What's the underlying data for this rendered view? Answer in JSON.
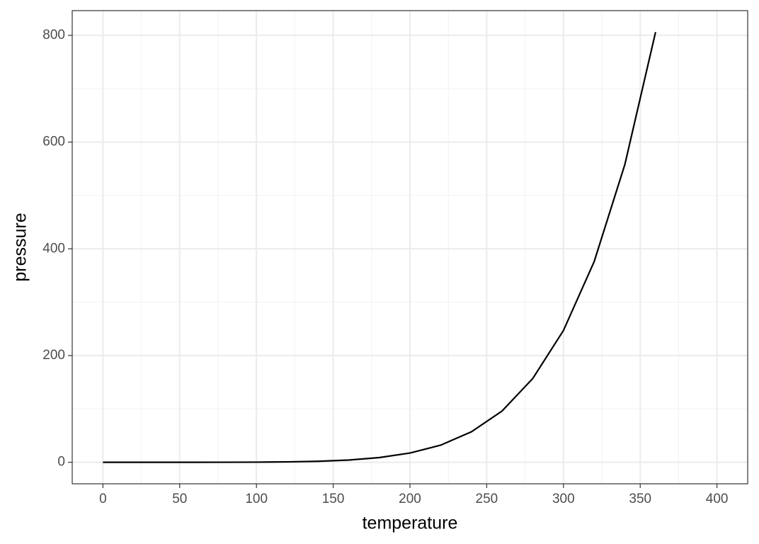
{
  "chart_data": {
    "type": "line",
    "x_label": "temperature",
    "y_label": "pressure",
    "x": [
      0,
      20,
      40,
      60,
      80,
      100,
      120,
      140,
      160,
      180,
      200,
      220,
      240,
      260,
      280,
      300,
      320,
      340,
      360
    ],
    "series": [
      {
        "color": "#000000",
        "values": [
          0.0002,
          0.0012,
          0.006,
          0.03,
          0.09,
          0.27,
          0.75,
          1.85,
          4.2,
          8.8,
          17.3,
          32.1,
          57,
          96,
          157,
          247,
          376,
          558,
          806
        ]
      }
    ],
    "xlim": [
      -20,
      420
    ],
    "xticks": [
      0,
      50,
      100,
      150,
      200,
      250,
      300,
      350,
      400
    ],
    "ylim": [
      -40.3,
      846.3
    ],
    "yticks": [
      0,
      200,
      400,
      600,
      800
    ],
    "grid": true
  }
}
